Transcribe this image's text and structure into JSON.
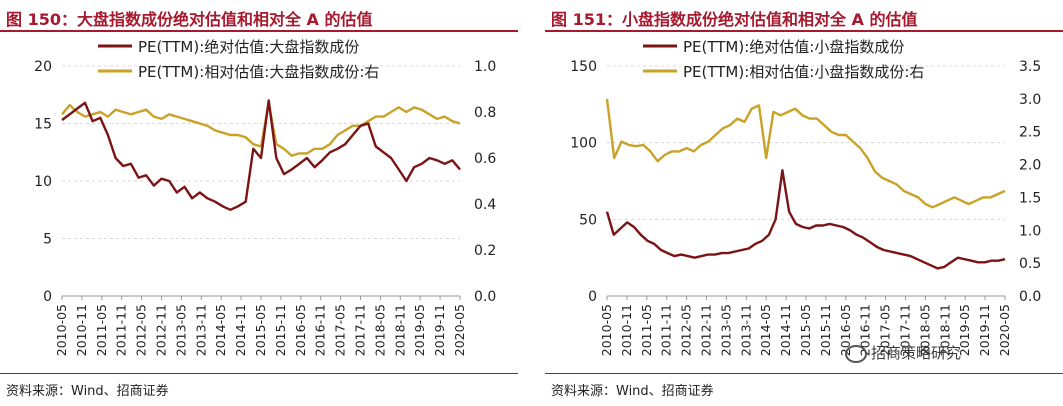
{
  "panels": [
    {
      "title": "图 150：大盘指数成份绝对估值和相对全 A 的估值",
      "source": "资料来源：Wind、招商证券"
    },
    {
      "title": "图 151：小盘指数成份绝对估值和相对全 A 的估值",
      "source": "资料来源：Wind、招商证券"
    }
  ],
  "watermark": "招商策略研究",
  "chart_data": [
    {
      "type": "line",
      "title": "",
      "x_ticks": [
        "2010-05",
        "2010-11",
        "2011-05",
        "2011-11",
        "2012-05",
        "2012-11",
        "2013-05",
        "2013-11",
        "2014-05",
        "2014-11",
        "2015-05",
        "2015-11",
        "2016-05",
        "2016-11",
        "2017-05",
        "2017-11",
        "2018-05",
        "2018-11",
        "2019-05",
        "2019-11",
        "2020-05"
      ],
      "y_left": {
        "min": 0,
        "max": 20,
        "ticks": [
          "0",
          "5",
          "10",
          "15",
          "20"
        ]
      },
      "y_right": {
        "min": 0,
        "max": 1.0,
        "ticks": [
          "0.0",
          "0.2",
          "0.4",
          "0.6",
          "0.8",
          "1.0"
        ]
      },
      "legend_position": "top",
      "series": [
        {
          "name": "PE(TTM):绝对估值:大盘指数成份",
          "axis": "left",
          "color": "#7b1414",
          "values": [
            15.3,
            15.8,
            16.3,
            16.8,
            15.2,
            15.5,
            14.0,
            12.0,
            11.3,
            11.5,
            10.3,
            10.5,
            9.6,
            10.2,
            10.0,
            9.0,
            9.5,
            8.5,
            9.0,
            8.5,
            8.2,
            7.8,
            7.5,
            7.8,
            8.2,
            12.8,
            12.0,
            17.0,
            12.0,
            10.6,
            11.0,
            11.5,
            12.0,
            11.2,
            11.8,
            12.5,
            12.8,
            13.2,
            14.0,
            14.8,
            15.0,
            13.0,
            12.5,
            12.0,
            11.0,
            10.0,
            11.2,
            11.5,
            12.0,
            11.8,
            11.5,
            11.8,
            11.0
          ]
        },
        {
          "name": "PE(TTM):相对估值:大盘指数成份:右",
          "axis": "right",
          "color": "#c9a227",
          "values": [
            0.79,
            0.83,
            0.8,
            0.78,
            0.79,
            0.8,
            0.78,
            0.81,
            0.8,
            0.79,
            0.8,
            0.81,
            0.78,
            0.77,
            0.79,
            0.78,
            0.77,
            0.76,
            0.75,
            0.74,
            0.72,
            0.71,
            0.7,
            0.7,
            0.69,
            0.66,
            0.65,
            0.84,
            0.66,
            0.64,
            0.61,
            0.62,
            0.62,
            0.64,
            0.64,
            0.66,
            0.7,
            0.72,
            0.74,
            0.74,
            0.76,
            0.78,
            0.78,
            0.8,
            0.82,
            0.8,
            0.82,
            0.81,
            0.79,
            0.77,
            0.78,
            0.76,
            0.75
          ]
        }
      ]
    },
    {
      "type": "line",
      "title": "",
      "x_ticks": [
        "2010-05",
        "2010-11",
        "2011-05",
        "2011-11",
        "2012-05",
        "2012-11",
        "2013-05",
        "2013-11",
        "2014-05",
        "2014-11",
        "2015-05",
        "2015-11",
        "2016-05",
        "2016-11",
        "2017-05",
        "2017-11",
        "2018-05",
        "2018-11",
        "2019-05",
        "2019-11",
        "2020-05"
      ],
      "y_left": {
        "min": 0,
        "max": 150,
        "ticks": [
          "0",
          "50",
          "100",
          "150"
        ]
      },
      "y_right": {
        "min": 0,
        "max": 3.5,
        "ticks": [
          "0.0",
          "0.5",
          "1.0",
          "1.5",
          "2.0",
          "2.5",
          "3.0",
          "3.5"
        ]
      },
      "legend_position": "top",
      "series": [
        {
          "name": "PE(TTM):绝对估值:小盘指数成份",
          "axis": "left",
          "color": "#7b1414",
          "values": [
            55,
            40,
            44,
            48,
            45,
            40,
            36,
            34,
            30,
            28,
            26,
            27,
            26,
            25,
            26,
            27,
            27,
            28,
            28,
            29,
            30,
            31,
            34,
            36,
            40,
            50,
            82,
            55,
            47,
            45,
            44,
            46,
            46,
            47,
            46,
            45,
            43,
            40,
            38,
            35,
            32,
            30,
            29,
            28,
            27,
            26,
            24,
            22,
            20,
            18,
            19,
            22,
            25,
            24,
            23,
            22,
            22,
            23,
            23,
            24
          ]
        },
        {
          "name": "PE(TTM):相对估值:小盘指数成份:右",
          "axis": "right",
          "color": "#c9a227",
          "values": [
            3.0,
            2.1,
            2.35,
            2.3,
            2.28,
            2.3,
            2.2,
            2.05,
            2.15,
            2.2,
            2.2,
            2.25,
            2.2,
            2.3,
            2.35,
            2.45,
            2.55,
            2.6,
            2.7,
            2.65,
            2.85,
            2.9,
            2.1,
            2.8,
            2.75,
            2.8,
            2.85,
            2.75,
            2.7,
            2.7,
            2.6,
            2.5,
            2.45,
            2.45,
            2.35,
            2.25,
            2.1,
            1.9,
            1.8,
            1.75,
            1.7,
            1.6,
            1.55,
            1.5,
            1.4,
            1.35,
            1.4,
            1.45,
            1.5,
            1.45,
            1.4,
            1.45,
            1.5,
            1.5,
            1.55,
            1.6
          ]
        }
      ]
    }
  ]
}
